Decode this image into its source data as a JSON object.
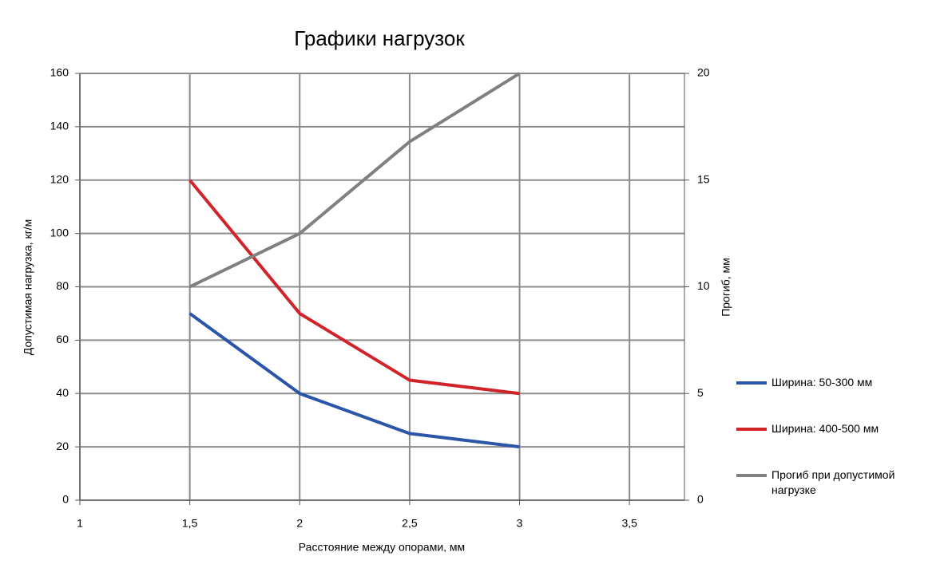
{
  "chart_data": {
    "type": "line",
    "title": "Графики нагрузок",
    "x_label": "Расстояние между опорами, мм",
    "y_label": "Допустимая нагрузка, кг/м",
    "y2_label": "Прогиб, мм",
    "x": [
      1.5,
      2,
      2.5,
      3
    ],
    "series": [
      {
        "name": "Ширина: 50-300 мм",
        "color": "#2a55a8",
        "values": [
          70,
          40,
          25,
          20
        ]
      },
      {
        "name": "Ширина: 400-500 мм",
        "color": "#d0232a",
        "values": [
          120,
          70,
          45,
          40
        ]
      },
      {
        "name": "Прогиб при допустимой нагрузке",
        "color": "#808080",
        "values": [
          10,
          12.5,
          16.8,
          20
        ],
        "axis": "y2"
      }
    ],
    "xlim": [
      1,
      3.75
    ],
    "xticks": [
      1,
      {
        "value": 1.5,
        "label": "1,5"
      },
      2,
      {
        "value": 2.5,
        "label": "2,5"
      },
      3,
      {
        "value": 3.5,
        "label": "3,5"
      }
    ],
    "ylim": [
      0,
      160
    ],
    "yticks": [
      0,
      20,
      40,
      60,
      80,
      100,
      120,
      140,
      160
    ],
    "y2lim": [
      0,
      20
    ],
    "y2ticks": [
      0,
      5,
      10,
      15,
      20
    ],
    "grid": true,
    "legend": "right"
  }
}
